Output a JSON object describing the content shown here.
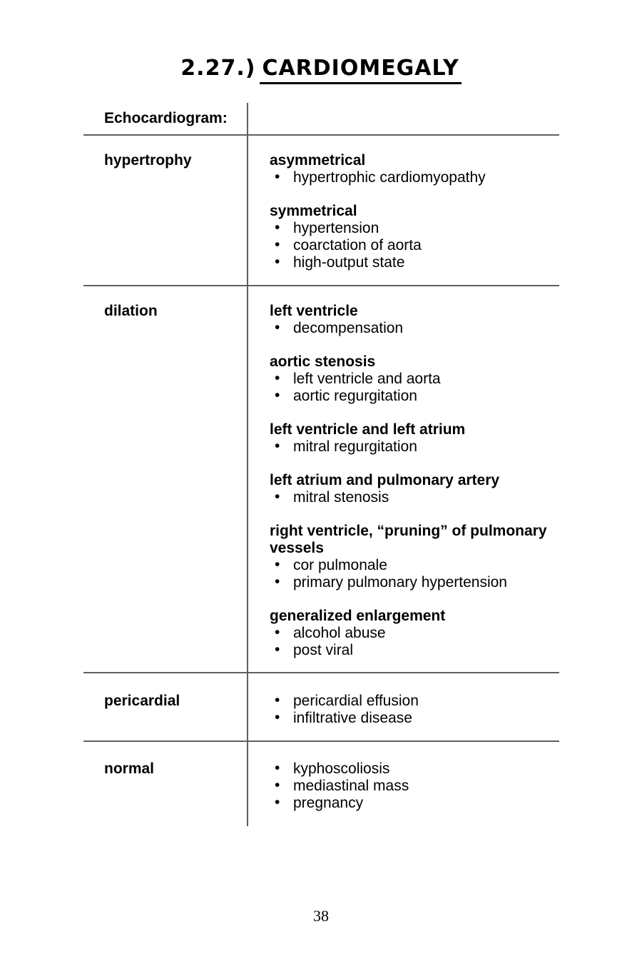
{
  "page": {
    "title_prefix": "2.27.)",
    "title_main": "CARDIOMEGALY",
    "page_number": "38"
  },
  "table": {
    "header_label": "Echocardiogram:",
    "rows": [
      {
        "label": "hypertrophy",
        "groups": [
          {
            "heading": "asymmetrical",
            "bullets": [
              "hypertrophic cardiomyopathy"
            ]
          },
          {
            "heading": "symmetrical",
            "bullets": [
              "hypertension",
              "coarctation of aorta",
              "high-output state"
            ]
          }
        ]
      },
      {
        "label": "dilation",
        "groups": [
          {
            "heading": "left ventricle",
            "bullets": [
              "decompensation"
            ]
          },
          {
            "heading": "aortic stenosis",
            "bullets": [
              "left ventricle and aorta",
              "aortic regurgitation"
            ]
          },
          {
            "heading": "left ventricle and left atrium",
            "bullets": [
              "mitral regurgitation"
            ]
          },
          {
            "heading": "left atrium and pulmonary artery",
            "bullets": [
              "mitral stenosis"
            ]
          },
          {
            "heading": "right ventricle, “pruning” of pulmonary vessels",
            "bullets": [
              "cor pulmonale",
              "primary pulmonary hypertension"
            ]
          },
          {
            "heading": "generalized enlargement",
            "bullets": [
              "alcohol abuse",
              "post viral"
            ]
          }
        ]
      },
      {
        "label": "pericardial",
        "groups": [
          {
            "heading": "",
            "bullets": [
              "pericardial effusion",
              "infiltrative disease"
            ]
          }
        ]
      },
      {
        "label": "normal",
        "groups": [
          {
            "heading": "",
            "bullets": [
              "kyphoscoliosis",
              "mediastinal mass",
              "pregnancy"
            ]
          }
        ]
      }
    ]
  },
  "icons": {
    "bullet": "•"
  },
  "colors": {
    "rule_line": "#5f5f5f",
    "text": "#000000",
    "background": "#ffffff"
  }
}
